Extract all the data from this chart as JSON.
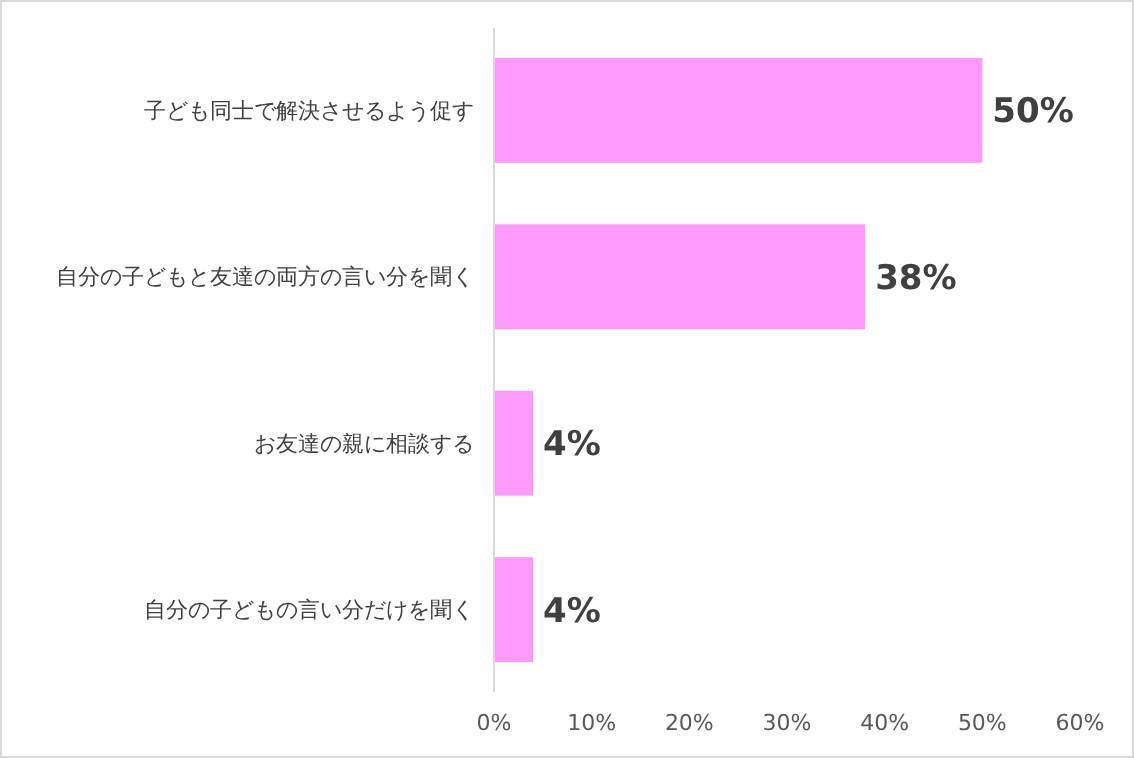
{
  "chart_data": {
    "type": "bar",
    "orientation": "horizontal",
    "categories": [
      "子ども同士で解決させるよう促す",
      "自分の子どもと友達の両方の言い分を聞く",
      "お友達の親に相談する",
      "自分の子どもの言い分だけを聞く"
    ],
    "values": [
      50,
      38,
      4,
      4
    ],
    "value_labels": [
      "50%",
      "38%",
      "4%",
      "4%"
    ],
    "color": "#ff99ff",
    "xlim": [
      0,
      60
    ],
    "xticks": [
      {
        "value": 0,
        "label": "0%"
      },
      {
        "value": 10,
        "label": "10%"
      },
      {
        "value": 20,
        "label": "20%"
      },
      {
        "value": 30,
        "label": "30%"
      },
      {
        "value": 40,
        "label": "40%"
      },
      {
        "value": 50,
        "label": "50%"
      },
      {
        "value": 60,
        "label": "60%"
      }
    ],
    "grid": false
  }
}
